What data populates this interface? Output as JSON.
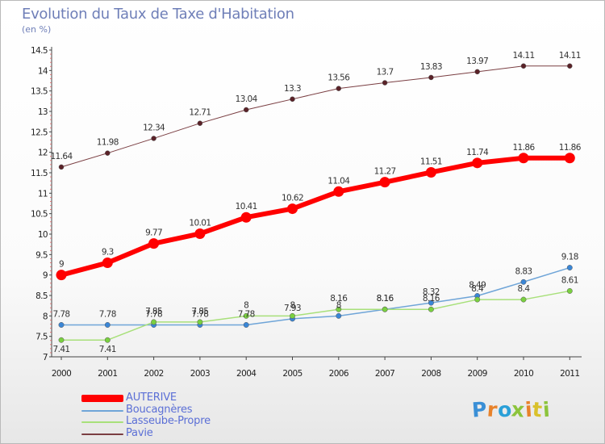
{
  "title": "Evolution du Taux de Taxe d'Habitation",
  "subtitle": "(en %)",
  "logo": {
    "text": "Proxiti",
    "letter_colors": [
      "#3a8fd6",
      "#e8822a",
      "#2aa0d8",
      "#8cc43c",
      "#e8822a",
      "#d9c12b",
      "#8cc43c"
    ]
  },
  "chart_data": {
    "type": "line",
    "x": [
      2000,
      2001,
      2002,
      2003,
      2004,
      2005,
      2006,
      2007,
      2008,
      2009,
      2010,
      2011
    ],
    "xlabel": "",
    "ylabel": "",
    "ylim": [
      7,
      14.5
    ],
    "yticks": [
      "7",
      "7.5",
      "8",
      "8.5",
      "9",
      "9.5",
      "10",
      "10.5",
      "11",
      "11.5",
      "12",
      "12.5",
      "13",
      "13.5",
      "14",
      "14.5"
    ],
    "grid": false,
    "legend_position": "bottom-left",
    "series": [
      {
        "name": "AUTERIVE",
        "color": "#ff0000",
        "values": [
          9,
          9.3,
          9.77,
          10.01,
          10.41,
          10.62,
          11.04,
          11.27,
          11.51,
          11.74,
          11.86,
          11.86
        ],
        "labels": [
          "9",
          "9.3",
          "9.77",
          "10.01",
          "10.41",
          "10.62",
          "11.04",
          "11.27",
          "11.51",
          "11.74",
          "11.86",
          "11.86"
        ]
      },
      {
        "name": "Boucagnères",
        "color": "#6fa5d8",
        "values": [
          7.78,
          7.78,
          7.78,
          7.78,
          7.78,
          7.93,
          8,
          8.16,
          8.32,
          8.49,
          8.83,
          9.18
        ],
        "labels": [
          "7.78",
          "7.78",
          "7.78",
          "7.78",
          "7.78",
          "7.93",
          "8",
          "8.16",
          "8.32",
          "8.49",
          "8.83",
          "9.18"
        ]
      },
      {
        "name": "Lasseube-Propre",
        "color": "#a8e07a",
        "values": [
          7.41,
          7.41,
          7.85,
          7.85,
          8,
          8,
          8.16,
          8.16,
          8.16,
          8.4,
          8.4,
          8.61
        ],
        "labels": [
          "7.41",
          "7.41",
          "7.85",
          "7.85",
          "8",
          "8",
          "8.16",
          "8.16",
          "8.16",
          "8.4",
          "8.4",
          "8.61"
        ]
      },
      {
        "name": "Pavie",
        "color": "#7a3e42",
        "values": [
          11.64,
          11.98,
          12.34,
          12.71,
          13.04,
          13.3,
          13.56,
          13.7,
          13.83,
          13.97,
          14.11,
          14.11
        ],
        "labels": [
          "11.64",
          "11.98",
          "12.34",
          "12.71",
          "13.04",
          "13.3",
          "13.56",
          "13.7",
          "13.83",
          "13.97",
          "14.11",
          "14.11"
        ]
      }
    ]
  }
}
